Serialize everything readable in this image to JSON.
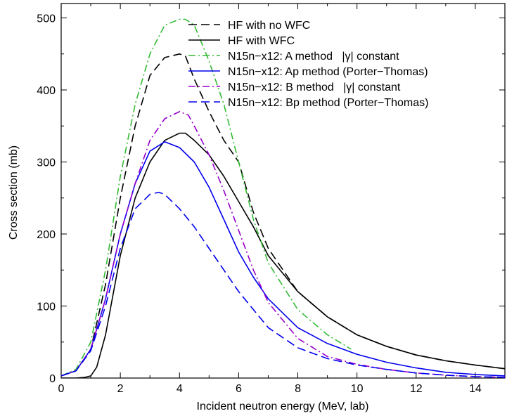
{
  "chart_data": {
    "type": "line",
    "xlabel": "Incident neutron energy (MeV, lab)",
    "ylabel": "Cross section (mb)",
    "xlim": [
      0,
      15
    ],
    "ylim": [
      0,
      520
    ],
    "xticks": [
      0,
      2,
      4,
      6,
      8,
      10,
      12,
      14
    ],
    "yticks": [
      0,
      100,
      200,
      300,
      400,
      500
    ],
    "grid": false,
    "legend_position": "top-right",
    "series": [
      {
        "name": "HF with no WFC",
        "color": "#000000",
        "dash": "dashed",
        "x": [
          0,
          0.5,
          1.0,
          1.5,
          2.0,
          2.5,
          3.0,
          3.5,
          4.0,
          4.2,
          4.5,
          5.0,
          5.5,
          6.0,
          6.5,
          7.0,
          8.0,
          9.0,
          10.0,
          11.0,
          12.0,
          13.0,
          14.0,
          15.0
        ],
        "y": [
          3,
          10,
          40,
          130,
          250,
          350,
          420,
          445,
          450,
          447,
          415,
          370,
          330,
          300,
          230,
          180,
          120,
          85,
          60,
          44,
          32,
          24,
          18,
          13
        ]
      },
      {
        "name": "HF with WFC",
        "color": "#000000",
        "dash": "solid",
        "x": [
          0,
          0.5,
          0.8,
          1.0,
          1.2,
          1.5,
          2.0,
          2.5,
          3.0,
          3.5,
          4.0,
          4.2,
          4.5,
          5.0,
          5.5,
          6.0,
          6.5,
          7.0,
          8.0,
          9.0,
          10.0,
          11.0,
          12.0,
          13.0,
          14.0,
          15.0
        ],
        "y": [
          0,
          0,
          1,
          3,
          15,
          60,
          170,
          250,
          300,
          330,
          340,
          340,
          330,
          310,
          280,
          245,
          210,
          170,
          120,
          85,
          60,
          44,
          32,
          24,
          18,
          13
        ]
      },
      {
        "name": "N15n−x12: A method   |γ| constant",
        "color": "#33bb33",
        "dash": "dashdot",
        "x": [
          0,
          0.5,
          1.0,
          1.5,
          2.0,
          2.5,
          3.0,
          3.5,
          4.0,
          4.2,
          4.5,
          5.0,
          5.5,
          6.0,
          6.5,
          7.0,
          8.0,
          9.0,
          9.8
        ],
        "y": [
          3,
          12,
          50,
          150,
          280,
          380,
          450,
          490,
          498,
          498,
          490,
          440,
          380,
          300,
          220,
          160,
          95,
          60,
          40
        ]
      },
      {
        "name": "N15n−x12: Ap method (Porter−Thomas)",
        "color": "#0000ee",
        "dash": "solid",
        "x": [
          0,
          0.5,
          1.0,
          1.5,
          2.0,
          2.5,
          3.0,
          3.5,
          4.0,
          4.5,
          5.0,
          5.5,
          6.0,
          6.5,
          7.0,
          8.0,
          9.0,
          10.0,
          11.0,
          12.0,
          13.0,
          14.0,
          15.0
        ],
        "y": [
          3,
          10,
          40,
          110,
          200,
          270,
          315,
          328,
          320,
          300,
          265,
          220,
          175,
          140,
          110,
          70,
          48,
          33,
          22,
          14,
          8,
          5,
          3
        ]
      },
      {
        "name": "N15n−x12: B method   |γ| constant",
        "color": "#9900cc",
        "dash": "dashdot",
        "x": [
          0,
          0.5,
          1.0,
          1.5,
          2.0,
          2.5,
          3.0,
          3.5,
          4.0,
          4.3,
          4.5,
          5.0,
          5.5,
          6.0,
          6.5,
          7.0,
          8.0,
          9.0,
          10.0,
          11.0,
          12.0,
          13.0,
          14.0,
          15.0
        ],
        "y": [
          3,
          10,
          40,
          110,
          200,
          270,
          330,
          360,
          370,
          365,
          350,
          310,
          260,
          205,
          150,
          105,
          55,
          30,
          19,
          12,
          7,
          4,
          2,
          1
        ]
      },
      {
        "name": "N15n−x12: Bp method (Porter−Thomas)",
        "color": "#0000ee",
        "dash": "dashed",
        "x": [
          0,
          0.5,
          1.0,
          1.5,
          2.0,
          2.5,
          3.0,
          3.3,
          3.5,
          4.0,
          4.5,
          5.0,
          5.5,
          6.0,
          6.5,
          7.0,
          8.0,
          9.0,
          10.0,
          11.0,
          12.0,
          13.0,
          14.0,
          15.0
        ],
        "y": [
          3,
          10,
          38,
          100,
          180,
          235,
          255,
          258,
          255,
          235,
          210,
          180,
          150,
          120,
          95,
          70,
          42,
          27,
          18,
          12,
          7,
          4,
          2,
          1
        ]
      }
    ]
  }
}
